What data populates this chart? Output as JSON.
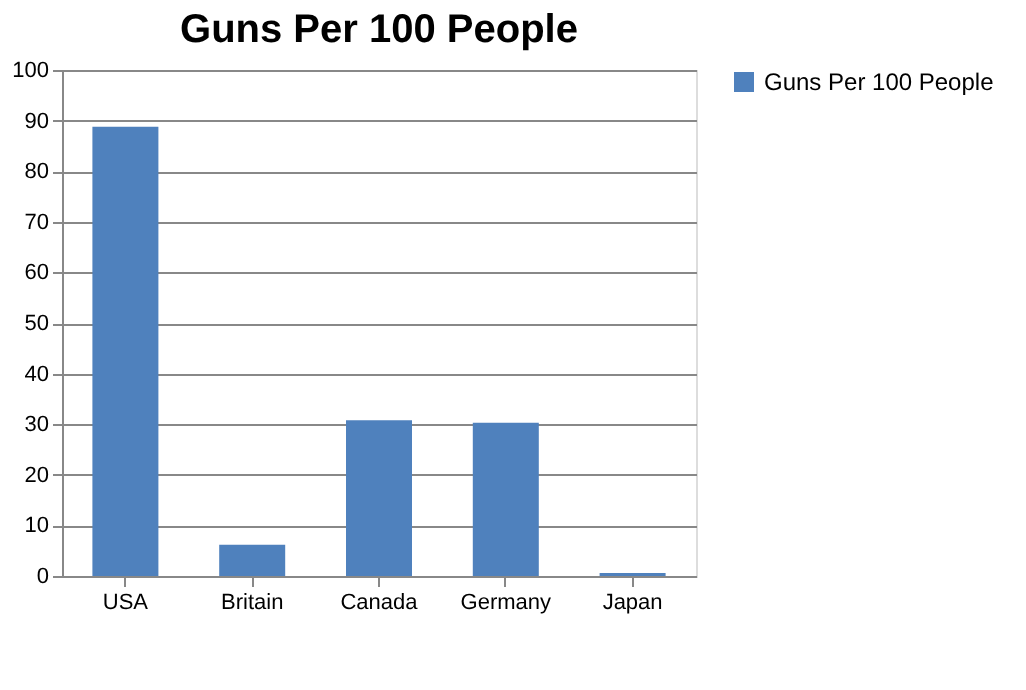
{
  "chart_data": {
    "type": "bar",
    "title": "Guns Per 100 People",
    "categories": [
      "USA",
      "Britain",
      "Canada",
      "Germany",
      "Japan"
    ],
    "series": [
      {
        "name": "Guns Per 100 People",
        "color": "#4f81bd",
        "values": [
          88.8,
          6.2,
          30.8,
          30.3,
          0.6
        ]
      }
    ],
    "ylim": [
      0,
      100
    ],
    "yticks": [
      0,
      10,
      20,
      30,
      40,
      50,
      60,
      70,
      80,
      90,
      100
    ],
    "grid": "y",
    "legend": "right"
  }
}
